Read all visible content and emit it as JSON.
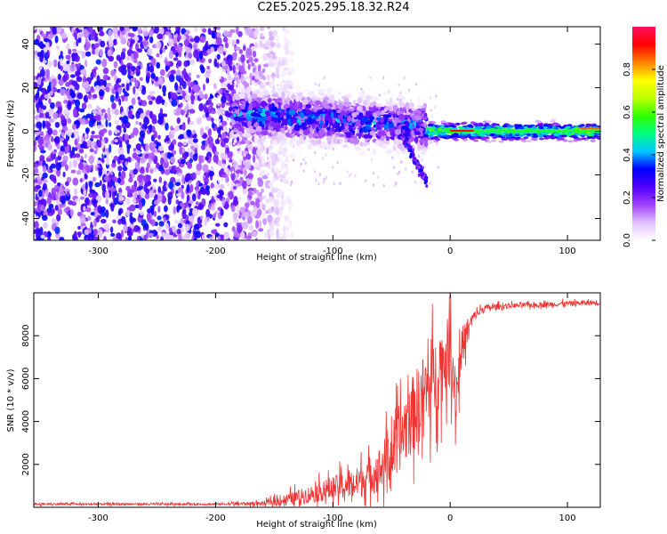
{
  "title": "C2E5.2025.295.18.32.R24",
  "chart_data": [
    {
      "type": "heatmap",
      "name": "spectrogram",
      "xlabel": "Height of straight line (km)",
      "ylabel": "Frequency (Hz)",
      "xlim": [
        -355,
        128
      ],
      "ylim": [
        -50,
        48
      ],
      "xticks": [
        -300,
        -200,
        -100,
        0,
        100
      ],
      "yticks": [
        -40,
        -20,
        0,
        20,
        40
      ],
      "colorbar": {
        "label": "Normalized spectral amplitude",
        "range": [
          0,
          1
        ],
        "ticks": [
          "0.0",
          "0.2",
          "0.4",
          "0.6",
          "0.8"
        ],
        "colors": [
          "#ffffff",
          "#e0c0ff",
          "#a040ff",
          "#5000ff",
          "#0000ff",
          "#00c8ff",
          "#00ff80",
          "#30ff00",
          "#c0ff00",
          "#ffff00",
          "#ff8000",
          "#ff0000",
          "#ff1060"
        ]
      },
      "regions": [
        {
          "desc": "noise",
          "x": [
            -355,
            -160
          ],
          "freq_range": [
            -50,
            48
          ],
          "amplitude": 0.12
        },
        {
          "desc": "signal",
          "x": [
            -185,
            -20
          ],
          "freq_center": 6,
          "freq_spread": 8,
          "amplitude": 0.3
        },
        {
          "desc": "tone",
          "x": [
            -20,
            128
          ],
          "freq_center": 0,
          "freq_spread": 2,
          "amplitude": 0.65
        }
      ]
    },
    {
      "type": "line",
      "name": "snr",
      "xlabel": "Height of straight line (km)",
      "ylabel": "SNR (10 * v/v)",
      "xlim": [
        -355,
        128
      ],
      "ylim": [
        0,
        10000
      ],
      "xticks": [
        -300,
        -200,
        -100,
        0,
        100
      ],
      "yticks": [
        2000,
        4000,
        6000,
        8000
      ],
      "color": "#ee3333",
      "x": [
        -355,
        -250,
        -200,
        -160,
        -140,
        -120,
        -100,
        -80,
        -60,
        -50,
        -40,
        -30,
        -20,
        -10,
        0,
        5,
        10,
        20,
        30,
        50,
        80,
        100,
        128
      ],
      "y": [
        150,
        150,
        150,
        180,
        350,
        600,
        900,
        1100,
        1800,
        2500,
        3600,
        4500,
        5500,
        6300,
        7400,
        5200,
        7500,
        8900,
        9300,
        9400,
        9450,
        9500,
        9550
      ],
      "noise_amplitude": [
        60,
        60,
        60,
        120,
        350,
        500,
        700,
        900,
        1300,
        1700,
        2100,
        2300,
        2500,
        2300,
        2000,
        1800,
        1200,
        300,
        200,
        150,
        150,
        150,
        150
      ]
    }
  ],
  "tick_labels": {
    "x": [
      "-300",
      "-200",
      "-100",
      "0",
      "100"
    ],
    "spec_y": [
      "-40",
      "-20",
      "0",
      "20",
      "40"
    ],
    "snr_y": [
      "2000",
      "4000",
      "6000",
      "8000"
    ],
    "colorbar": [
      "0.0",
      "0.2",
      "0.4",
      "0.6",
      "0.8"
    ]
  }
}
